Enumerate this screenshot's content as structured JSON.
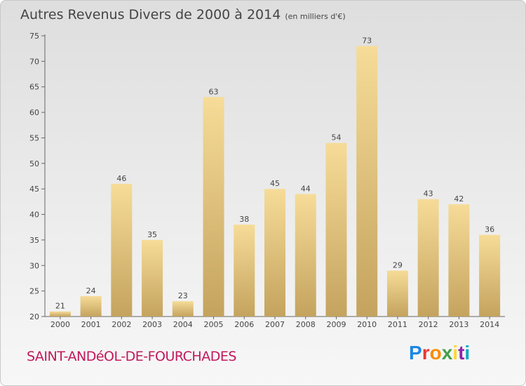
{
  "header": {
    "title": "Autres Revenus Divers de 2000 à 2014",
    "unit": "(en milliers d'€)"
  },
  "footer": {
    "commune": "SAINT-ANDéOL-DE-FOURCHADES",
    "logo_letters": [
      "P",
      "r",
      "o",
      "x",
      "i",
      "t",
      "i"
    ],
    "logo_colors": [
      "#1e88e5",
      "#e53935",
      "#fb8c00",
      "#43a047",
      "#fdd835",
      "#8e24aa",
      "#00acc1"
    ]
  },
  "chart_data": {
    "type": "bar",
    "title": "Autres Revenus Divers de 2000 à 2014",
    "xlabel": "",
    "ylabel": "",
    "categories": [
      "2000",
      "2001",
      "2002",
      "2003",
      "2004",
      "2005",
      "2006",
      "2007",
      "2008",
      "2009",
      "2010",
      "2011",
      "2012",
      "2013",
      "2014"
    ],
    "values": [
      21,
      24,
      46,
      35,
      23,
      63,
      38,
      45,
      44,
      54,
      73,
      29,
      43,
      42,
      36
    ],
    "ylim": [
      20,
      75
    ],
    "yticks": [
      20,
      25,
      30,
      35,
      40,
      45,
      50,
      55,
      60,
      65,
      70,
      75
    ],
    "grid": false,
    "bar_color": "#e8c878"
  }
}
